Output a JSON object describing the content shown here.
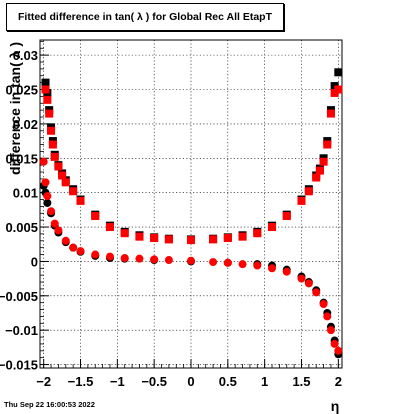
{
  "timestamp": "Thu Sep 22 16:00:53 2022",
  "chart_data": {
    "type": "scatter",
    "title": "Fitted difference in tan( λ ) for Global Rec All EtapT",
    "xlabel": "η",
    "ylabel": "difference in tan( λ )",
    "xlim": [
      -2.05,
      2.05
    ],
    "ylim": [
      -0.0155,
      0.0322
    ],
    "grid": true,
    "x_ticks": [
      -2,
      -1.5,
      -1,
      -0.5,
      0,
      0.5,
      1,
      1.5,
      2
    ],
    "x_tick_labels": [
      "−2",
      "−1.5",
      "−1",
      "−0.5",
      "0",
      "0.5",
      "1",
      "1.5",
      "2"
    ],
    "y_ticks": [
      -0.015,
      -0.01,
      -0.005,
      0,
      0.005,
      0.01,
      0.015,
      0.02,
      0.025,
      0.03
    ],
    "y_tick_labels": [
      "−0.015",
      "−0.01",
      "−0.005",
      "0",
      "0.005",
      "0.01",
      "0.015",
      "0.02",
      "0.025",
      "0.03"
    ],
    "series": [
      {
        "marker": "square",
        "color": "#000000",
        "x": [
          -1.975,
          -1.95,
          -1.925,
          -1.9,
          -1.875,
          -1.85,
          -1.8,
          -1.75,
          -1.7,
          -1.6,
          -1.5,
          -1.3,
          -1.1,
          -0.9,
          -0.7,
          -0.5,
          -0.3,
          0.0,
          0.3,
          0.5,
          0.7,
          0.9,
          1.1,
          1.3,
          1.5,
          1.6,
          1.7,
          1.75,
          1.8,
          1.85,
          1.9,
          1.95,
          2.0
        ],
        "y": [
          0.026,
          0.0245,
          0.022,
          0.0195,
          0.0175,
          0.0155,
          0.014,
          0.0128,
          0.0118,
          0.0105,
          0.009,
          0.0068,
          0.0052,
          0.0043,
          0.0038,
          0.0035,
          0.0033,
          0.0032,
          0.0033,
          0.0035,
          0.0038,
          0.0043,
          0.0052,
          0.0068,
          0.009,
          0.0105,
          0.0125,
          0.0135,
          0.015,
          0.0175,
          0.022,
          0.0255,
          0.0275
        ]
      },
      {
        "marker": "square",
        "color": "#ff0000",
        "x": [
          -1.975,
          -1.95,
          -1.925,
          -1.9,
          -1.875,
          -1.85,
          -1.8,
          -1.75,
          -1.7,
          -1.6,
          -1.5,
          -1.3,
          -1.1,
          -0.9,
          -0.7,
          -0.5,
          -0.3,
          0.0,
          0.3,
          0.5,
          0.7,
          0.9,
          1.1,
          1.3,
          1.5,
          1.6,
          1.7,
          1.75,
          1.8,
          1.85,
          1.9,
          1.95,
          2.0
        ],
        "y": [
          0.025,
          0.0235,
          0.0215,
          0.019,
          0.017,
          0.0152,
          0.0138,
          0.0125,
          0.0115,
          0.0102,
          0.0088,
          0.0066,
          0.005,
          0.0041,
          0.0036,
          0.0034,
          0.0032,
          0.0031,
          0.0032,
          0.0034,
          0.0036,
          0.0041,
          0.005,
          0.0066,
          0.0088,
          0.0102,
          0.0122,
          0.0132,
          0.0145,
          0.017,
          0.0215,
          0.0245,
          0.025
        ]
      },
      {
        "marker": "circle",
        "color": "#000000",
        "x": [
          -2.0,
          -1.975,
          -1.95,
          -1.9,
          -1.85,
          -1.8,
          -1.7,
          -1.6,
          -1.5,
          -1.3,
          -1.1,
          -0.9,
          -0.5,
          0.0,
          0.5,
          0.9,
          1.1,
          1.3,
          1.5,
          1.6,
          1.7,
          1.8,
          1.85,
          1.9,
          1.95,
          2.0
        ],
        "y": [
          0.011,
          0.01,
          0.0085,
          0.007,
          0.0052,
          0.0042,
          0.0028,
          0.002,
          0.0014,
          0.0008,
          0.0005,
          0.0004,
          0.0002,
          0.0,
          -0.0002,
          -0.0004,
          -0.0006,
          -0.0012,
          -0.0022,
          -0.003,
          -0.0042,
          -0.006,
          -0.0075,
          -0.0095,
          -0.0115,
          -0.0135
        ]
      },
      {
        "marker": "circle",
        "color": "#ff0000",
        "x": [
          -2.0,
          -1.975,
          -1.95,
          -1.9,
          -1.85,
          -1.8,
          -1.7,
          -1.6,
          -1.5,
          -1.3,
          -1.1,
          -0.9,
          -0.7,
          -0.5,
          -0.3,
          0.0,
          0.3,
          0.5,
          0.7,
          0.9,
          1.1,
          1.3,
          1.5,
          1.6,
          1.7,
          1.8,
          1.85,
          1.9,
          1.95,
          2.0
        ],
        "y": [
          0.0145,
          0.0115,
          0.0095,
          0.0073,
          0.0055,
          0.0045,
          0.003,
          0.002,
          0.0015,
          0.001,
          0.0007,
          0.0005,
          0.0004,
          0.0003,
          0.0002,
          0.0001,
          -0.0001,
          -0.0002,
          -0.0004,
          -0.0006,
          -0.001,
          -0.0015,
          -0.0025,
          -0.0032,
          -0.0045,
          -0.0062,
          -0.008,
          -0.01,
          -0.012,
          -0.013
        ]
      }
    ]
  }
}
